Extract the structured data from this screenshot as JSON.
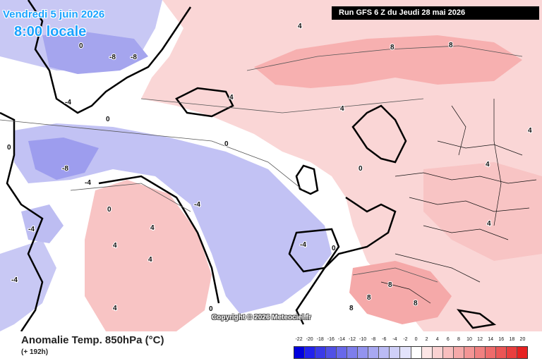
{
  "header": {
    "date": "Vendredi 5 juin 2026",
    "time": "8:00 locale",
    "run": "Run GFS 6 Z du Jeudi 28 mai 2026"
  },
  "footer": {
    "title": "Anomalie Temp. 850hPa (°C)",
    "subtitle": "(+ 192h)",
    "copyright": "Copyright © 2026 Meteociel.fr"
  },
  "legend": {
    "labels": [
      "-22",
      "-20",
      "-18",
      "-16",
      "-14",
      "-12",
      "-10",
      "-8",
      "-6",
      "-4",
      "-2",
      "0",
      "2",
      "4",
      "6",
      "8",
      "10",
      "12",
      "14",
      "16",
      "18",
      "20"
    ],
    "colors": [
      "#0000dd",
      "#2222ee",
      "#3a3ae8",
      "#5050e6",
      "#6868ea",
      "#7e7eec",
      "#9393ef",
      "#a8a8f2",
      "#bbbbf5",
      "#cfcff8",
      "#e3e3fb",
      "#ffffff",
      "#fde6e6",
      "#fad2d2",
      "#f8bebe",
      "#f5a9a9",
      "#f39595",
      "#f08080",
      "#ee6b6b",
      "#eb5656",
      "#e93f3f",
      "#e62222"
    ]
  },
  "map": {
    "contour_labels": [
      "0",
      "-4",
      "-8",
      "4",
      "8"
    ]
  }
}
